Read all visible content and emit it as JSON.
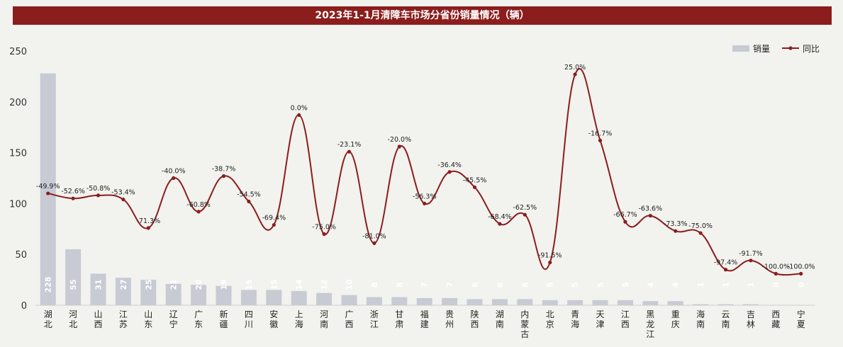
{
  "chart_data": {
    "type": "bar+line",
    "title": "2023年1-1月清障车市场分省份销量情况（辆）",
    "categories": [
      "湖北",
      "河北",
      "山西",
      "江苏",
      "山东",
      "辽宁",
      "广东",
      "新疆",
      "四川",
      "安徽",
      "上海",
      "河南",
      "广西",
      "浙江",
      "甘肃",
      "福建",
      "贵州",
      "陕西",
      "湖南",
      "内蒙古",
      "北京",
      "青海",
      "天津",
      "江西",
      "黑龙江",
      "重庆",
      "海南",
      "云南",
      "吉林",
      "西藏",
      "宁夏"
    ],
    "series": [
      {
        "name": "销量",
        "type": "bar",
        "values": [
          228,
          55,
          31,
          27,
          25,
          21,
          20,
          19,
          15,
          15,
          14,
          12,
          10,
          8,
          8,
          7,
          7,
          6,
          6,
          6,
          5,
          5,
          5,
          5,
          4,
          4,
          1,
          1,
          1,
          0,
          0
        ]
      },
      {
        "name": "同比",
        "type": "line",
        "labels": [
          "-49.9%",
          "-52.6%",
          "-50.8%",
          "-53.4%",
          "-71.3%",
          "-40.0%",
          "-60.8%",
          "-38.7%",
          "-54.5%",
          "-69.4%",
          "0.0%",
          "-75.0%",
          "-23.1%",
          "-81.0%",
          "-20.0%",
          "-56.3%",
          "-36.4%",
          "-45.5%",
          "-68.4%",
          "-62.5%",
          "-91.5%",
          "25.0%",
          "-16.7%",
          "-66.7%",
          "-63.6%",
          "-73.3%",
          "-75.0%",
          "-97.4%",
          "-91.7%",
          "-100.0%",
          "-100.0%"
        ],
        "plot_values": [
          110,
          105,
          108,
          104,
          76,
          125,
          92,
          127,
          102,
          79,
          187,
          70,
          151,
          61,
          156,
          100,
          131,
          116,
          80,
          89,
          42,
          227,
          162,
          82,
          88,
          73,
          71,
          35,
          44,
          31,
          31
        ]
      }
    ],
    "ylim": [
      0,
      250
    ],
    "yticks": [
      0,
      50,
      100,
      150,
      200,
      250
    ],
    "legend": "top-right",
    "colors": {
      "bar": "#c8cad4",
      "line": "#8b1d1d",
      "title_bg": "#8b1d1d"
    }
  }
}
